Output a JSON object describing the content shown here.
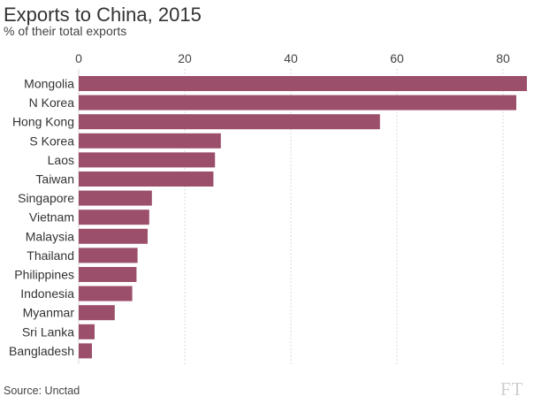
{
  "chart_data": {
    "type": "bar",
    "orientation": "horizontal",
    "title": "Exports to China, 2015",
    "subtitle": "% of their total exports",
    "xlabel": "",
    "ylabel": "",
    "xlim": [
      0,
      85
    ],
    "xticks": [
      0,
      20,
      40,
      60,
      80
    ],
    "grid": true,
    "categories": [
      "Mongolia",
      "N Korea",
      "Hong Kong",
      "S Korea",
      "Laos",
      "Taiwan",
      "Singapore",
      "Vietnam",
      "Malaysia",
      "Thailand",
      "Philippines",
      "Indonesia",
      "Myanmar",
      "Sri Lanka",
      "Bangladesh"
    ],
    "values": [
      84.5,
      82.5,
      56.8,
      26.8,
      25.7,
      25.4,
      13.8,
      13.3,
      13.0,
      11.1,
      10.9,
      10.1,
      6.8,
      3.0,
      2.5
    ],
    "bar_color": "#9b4f6a",
    "source": "Source: Unctad"
  },
  "branding": {
    "logo": "FT"
  }
}
